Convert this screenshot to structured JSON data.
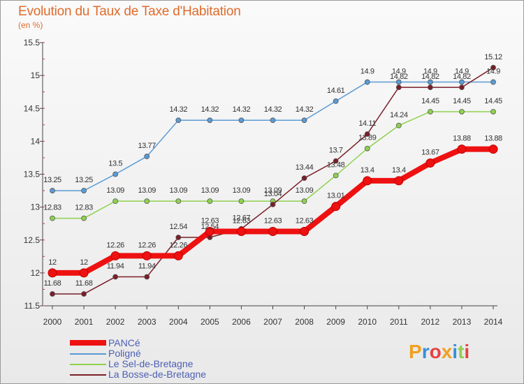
{
  "title": "Evolution du Taux de Taxe d'Habitation",
  "subtitle": "(en %)",
  "logo_text": "Proxiti",
  "chart_data": {
    "type": "line",
    "title": "Evolution du Taux de Taxe d'Habitation",
    "ylabel": "(en %)",
    "xlabel": "",
    "x": [
      "2000",
      "2001",
      "2002",
      "2003",
      "2004",
      "2005",
      "2006",
      "2007",
      "2008",
      "2009",
      "2010",
      "2011",
      "2012",
      "2013",
      "2014"
    ],
    "ylim": [
      11.5,
      15.5
    ],
    "yticks": [
      "11.5",
      "12",
      "12.5",
      "13",
      "13.5",
      "14",
      "14.5",
      "15",
      "15.5"
    ],
    "grid": false,
    "legend_position": "bottom-left",
    "series": [
      {
        "name": "PANCé",
        "color": "#ee1111",
        "values": [
          12,
          12,
          12.26,
          12.26,
          12.26,
          12.63,
          12.63,
          12.63,
          12.63,
          13.01,
          13.4,
          13.4,
          13.67,
          13.88,
          13.88
        ],
        "labels": [
          "12",
          "12",
          "12.26",
          "12.26",
          "12.26",
          "12.63",
          "12.63",
          "12.63",
          "12.63",
          "13.01",
          "13.4",
          "13.4",
          "13.67",
          "13.88",
          "13.88"
        ]
      },
      {
        "name": "Poligné",
        "color": "#5a9bd4",
        "values": [
          13.25,
          13.25,
          13.5,
          13.77,
          14.32,
          14.32,
          14.32,
          14.32,
          14.32,
          14.61,
          14.9,
          14.9,
          14.9,
          14.9,
          14.9
        ],
        "labels": [
          "13.25",
          "13.25",
          "13.5",
          "13.77",
          "14.32",
          "14.32",
          "14.32",
          "14.32",
          "14.32",
          "14.61",
          "14.9",
          "14.9",
          "14.9",
          "14.9",
          "14.9"
        ]
      },
      {
        "name": "Le Sel-de-Bretagne",
        "color": "#8fd14f",
        "values": [
          12.83,
          12.83,
          13.09,
          13.09,
          13.09,
          13.09,
          13.09,
          13.09,
          13.09,
          13.48,
          13.89,
          14.24,
          14.45,
          14.45,
          14.45
        ],
        "labels": [
          "12.83",
          "12.83",
          "13.09",
          "13.09",
          "13.09",
          "13.09",
          "13.09",
          "13.09",
          "13.09",
          "13.48",
          "13.89",
          "14.24",
          "14.45",
          "14.45",
          "14.45"
        ]
      },
      {
        "name": "La Bosse-de-Bretagne",
        "color": "#7a1e28",
        "values": [
          11.68,
          11.68,
          11.94,
          11.94,
          12.54,
          12.54,
          12.67,
          13.04,
          13.44,
          13.7,
          14.11,
          14.82,
          14.82,
          14.82,
          15.12
        ],
        "labels": [
          "11.68",
          "11.68",
          "11.94",
          "11.94",
          "12.54",
          "12.54",
          "12.67",
          "13.04",
          "13.44",
          "13.7",
          "14.11",
          "14.82",
          "14.82",
          "14.82",
          "15.12"
        ]
      }
    ]
  }
}
